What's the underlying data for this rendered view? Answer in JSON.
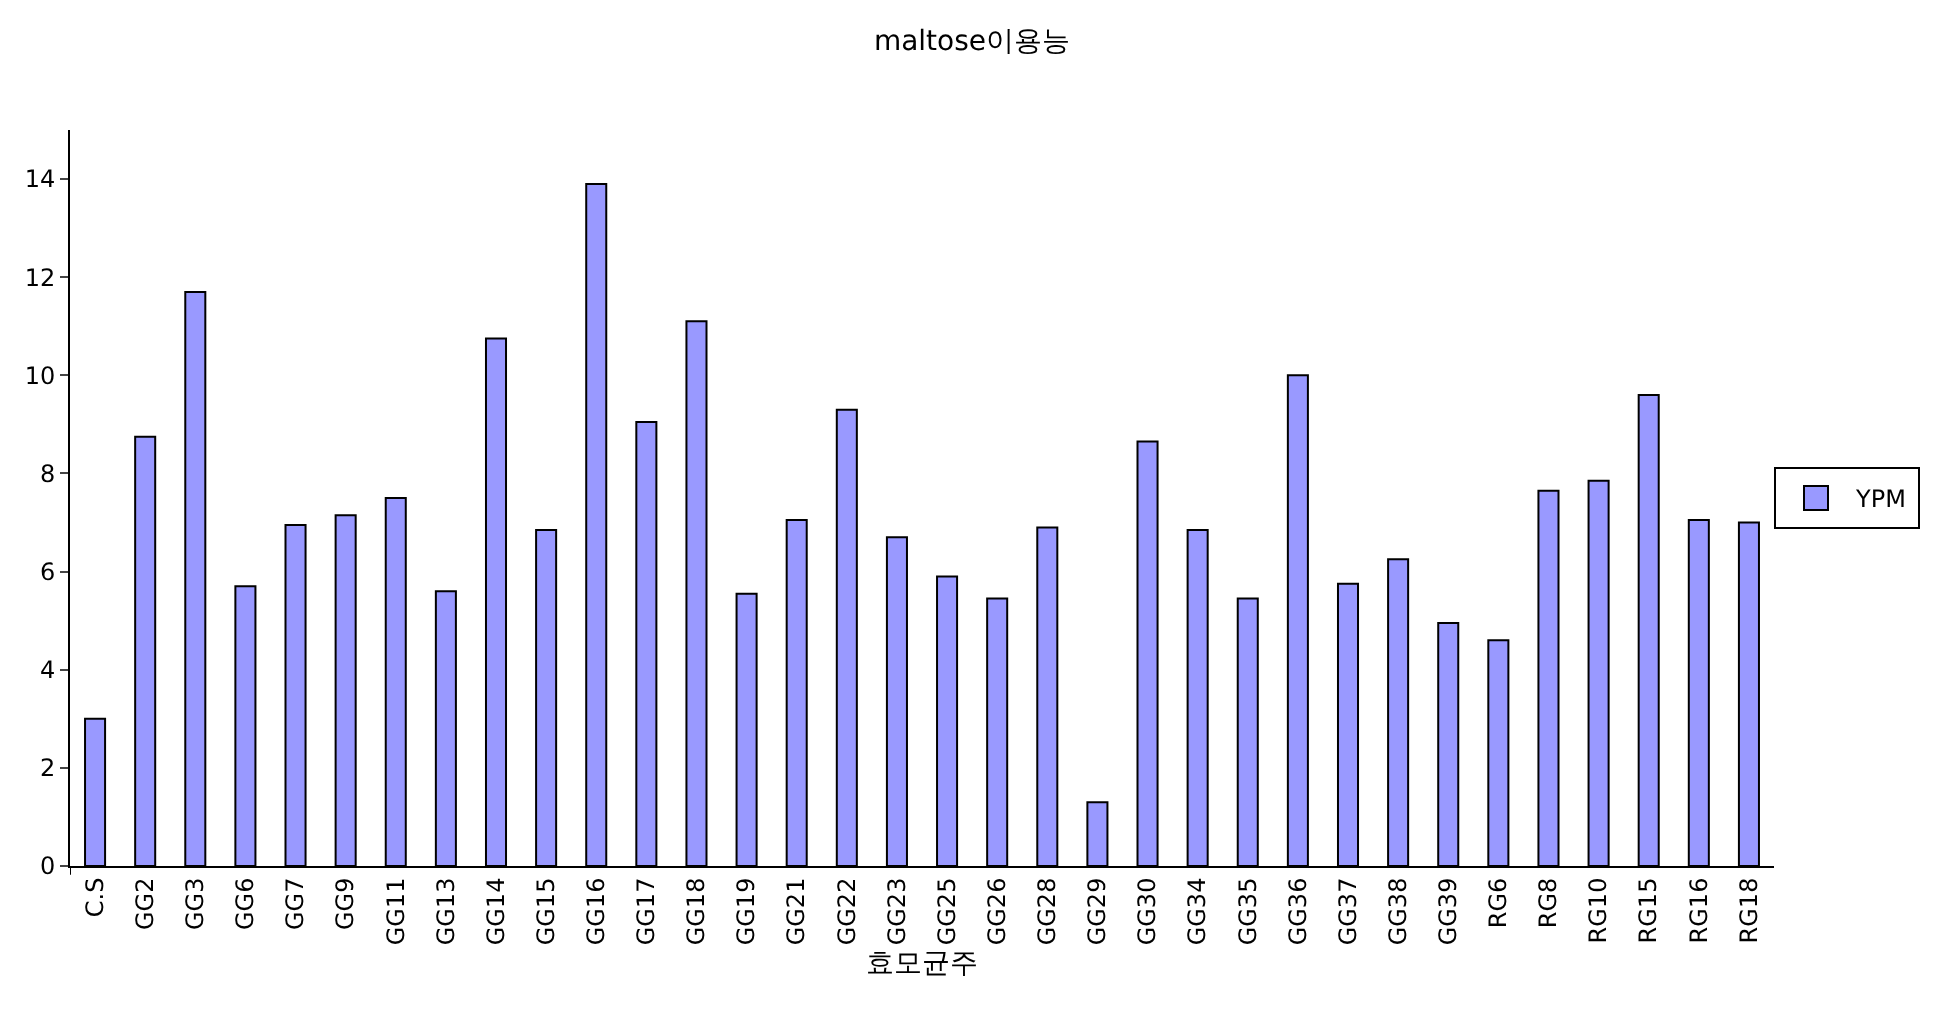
{
  "chart_data": {
    "type": "bar",
    "title": "maltose이용능",
    "xlabel": "효모균주",
    "categories": [
      "C.S",
      "GG2",
      "GG3",
      "GG6",
      "GG7",
      "GG9",
      "GG11",
      "GG13",
      "GG14",
      "GG15",
      "GG16",
      "GG17",
      "GG18",
      "GG19",
      "GG21",
      "GG22",
      "GG23",
      "GG25",
      "GG26",
      "GG28",
      "GG29",
      "GG30",
      "GG34",
      "GG35",
      "GG36",
      "GG37",
      "GG38",
      "GG39",
      "RG6",
      "RG8",
      "RG10",
      "RG15",
      "RG16",
      "RG18"
    ],
    "series": [
      {
        "name": "YPM",
        "color": "#9999ff",
        "values": [
          3.0,
          8.75,
          11.7,
          5.7,
          6.95,
          7.15,
          7.5,
          5.6,
          10.75,
          6.85,
          13.9,
          9.05,
          11.1,
          5.55,
          7.05,
          9.3,
          6.7,
          5.9,
          5.45,
          6.9,
          1.3,
          8.65,
          6.85,
          5.45,
          10.0,
          5.75,
          6.25,
          4.95,
          4.6,
          7.65,
          7.85,
          9.6,
          7.05,
          7.0
        ]
      }
    ],
    "ylim": [
      0,
      15
    ],
    "yticks": [
      0,
      2,
      4,
      6,
      8,
      10,
      12,
      14
    ],
    "grid": false,
    "legend": "right"
  }
}
